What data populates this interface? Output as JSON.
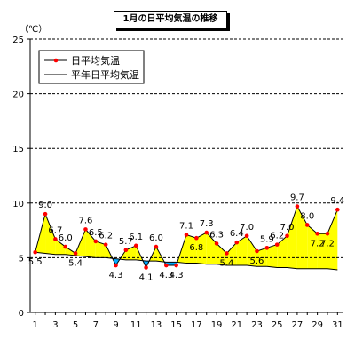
{
  "chart_data": {
    "type": "line",
    "title": "1月の日平均気温の推移",
    "ylabel": "（℃）",
    "xlabel": "",
    "ylim": [
      0,
      25
    ],
    "y_ticks": [
      0,
      5,
      10,
      15,
      20,
      25
    ],
    "x_ticks": [
      1,
      3,
      5,
      7,
      9,
      11,
      13,
      15,
      17,
      19,
      21,
      23,
      25,
      27,
      29,
      31
    ],
    "grid": "horizontal-dashed",
    "legend_position": "top-left",
    "series": [
      {
        "name": "日平均気温",
        "color": "#ff0000",
        "line_color": "#000000",
        "marker": "circle",
        "x": [
          1,
          2,
          3,
          4,
          5,
          6,
          7,
          8,
          9,
          10,
          11,
          12,
          13,
          14,
          15,
          16,
          17,
          18,
          19,
          20,
          21,
          22,
          23,
          24,
          25,
          26,
          27,
          28,
          29,
          30,
          31
        ],
        "values": [
          5.5,
          9.0,
          6.7,
          6.0,
          5.4,
          7.6,
          6.5,
          6.2,
          4.3,
          5.7,
          6.1,
          4.1,
          6.0,
          4.3,
          4.3,
          7.1,
          6.8,
          7.3,
          6.3,
          5.4,
          6.4,
          7.0,
          5.6,
          5.9,
          6.2,
          7.0,
          9.7,
          8.0,
          7.2,
          7.2,
          9.4
        ]
      },
      {
        "name": "平年日平均気温",
        "color": "#000000",
        "x": [
          1,
          2,
          3,
          4,
          5,
          6,
          7,
          8,
          9,
          10,
          11,
          12,
          13,
          14,
          15,
          16,
          17,
          18,
          19,
          20,
          21,
          22,
          23,
          24,
          25,
          26,
          27,
          28,
          29,
          30,
          31
        ],
        "values": [
          5.5,
          5.4,
          5.3,
          5.3,
          5.2,
          5.1,
          5.0,
          5.0,
          4.9,
          4.8,
          4.8,
          4.7,
          4.7,
          4.6,
          4.6,
          4.5,
          4.5,
          4.4,
          4.4,
          4.3,
          4.3,
          4.3,
          4.2,
          4.2,
          4.1,
          4.1,
          4.0,
          4.0,
          4.0,
          4.0,
          3.9
        ]
      }
    ],
    "data_labels": [
      "5.5",
      "9.0",
      "6.7",
      "6.0",
      "5.4",
      "7.6",
      "6.5",
      "6.2",
      "4.3",
      "5.7",
      "6.1",
      "4.1",
      "6.0",
      "4.3",
      "4.3",
      "7.1",
      "6.8",
      "7.3",
      "6.3",
      "5.4",
      "6.4",
      "7.0",
      "5.6",
      "5.9",
      "6.2",
      "7.0",
      "9.7",
      "8.0",
      "7.2",
      "7.2",
      "9.4"
    ],
    "fill": {
      "above_color": "#ffff00",
      "below_color": "#00a8ff"
    }
  }
}
